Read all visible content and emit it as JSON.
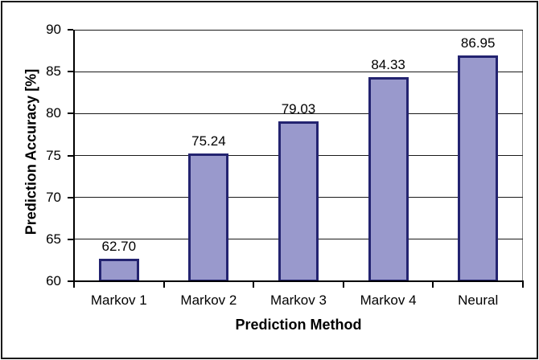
{
  "chart_data": {
    "type": "bar",
    "title": "",
    "xlabel": "Prediction Method",
    "ylabel": "Prediction Accuracy [%]",
    "categories": [
      "Markov 1",
      "Markov 2",
      "Markov 3",
      "Markov 4",
      "Neural"
    ],
    "values": [
      62.7,
      75.24,
      79.03,
      84.33,
      86.95
    ],
    "value_labels": [
      "62.70",
      "75.24",
      "79.03",
      "84.33",
      "86.95"
    ],
    "ylim": [
      60,
      90
    ],
    "yticks": [
      60,
      65,
      70,
      75,
      80,
      85,
      90
    ],
    "grid": true,
    "legend_position": "none",
    "colors": {
      "bar_fill": "#9999CC",
      "bar_border": "#232370",
      "gridline": "#1A1A1A",
      "axis": "#000000",
      "plot_border": "#808080",
      "text": "#000000",
      "background": "#FFFFFF",
      "frame_border": "#1A1A1A"
    }
  }
}
